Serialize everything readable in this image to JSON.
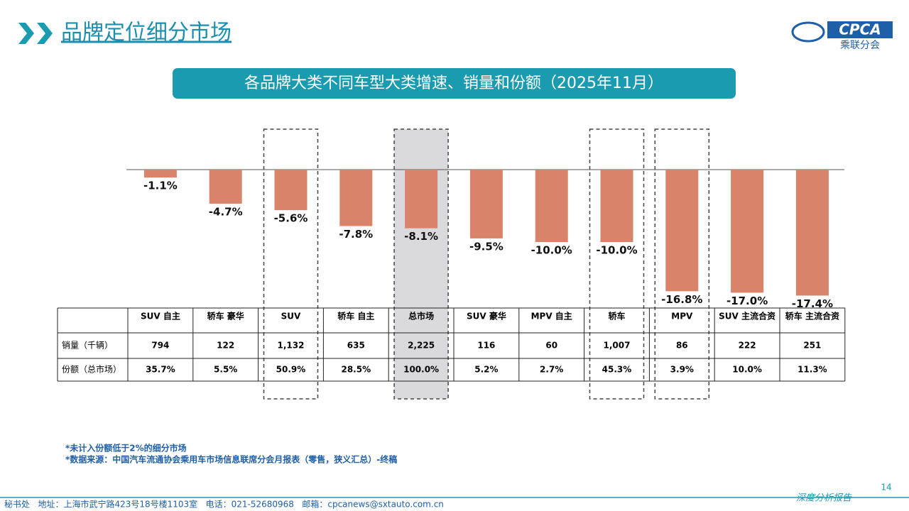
{
  "header": {
    "title": "品牌定位细分市场",
    "logo": "CPCA",
    "logo_sub": "乘联分会"
  },
  "chart_data": {
    "type": "bar",
    "title": "各品牌大类不同车型大类增速、销量和份额（2025年11月）",
    "categories": [
      "SUV 自主",
      "轿车 豪华",
      "SUV",
      "轿车 自主",
      "总市场",
      "SUV 豪华",
      "MPV 自主",
      "轿车",
      "MPV",
      "SUV 主流合资",
      "轿车 主流合资"
    ],
    "values": [
      -1.1,
      -4.7,
      -5.6,
      -7.8,
      -8.1,
      -9.5,
      -10.0,
      -10.0,
      -16.8,
      -17.0,
      -17.4
    ],
    "value_labels": [
      "-1.1%",
      "-4.7%",
      "-5.6%",
      "-7.8%",
      "-8.1%",
      "-9.5%",
      "-10.0%",
      "-10.0%",
      "-16.8%",
      "-17.0%",
      "-17.4%"
    ],
    "color": "#d9846a"
  },
  "table": {
    "row_labels": [
      "销量（千辆）",
      "份额（总市场）"
    ],
    "rows": [
      [
        "794",
        "122",
        "1,132",
        "635",
        "2,225",
        "116",
        "60",
        "1,007",
        "86",
        "222",
        "251"
      ],
      [
        "35.7%",
        "5.5%",
        "50.9%",
        "28.5%",
        "100.0%",
        "5.2%",
        "2.7%",
        "45.3%",
        "3.9%",
        "10.0%",
        "11.3%"
      ]
    ]
  },
  "notes": [
    "*未计入份额低于2%的细分市场",
    "*数据来源：中国汽车流通协会乘用车市场信息联席分会月报表（零售，狭义汇总）-终稿"
  ],
  "footer": {
    "contact": "秘书处   地址：上海市武宁路423号18号楼1103室   电话：021-52680968   邮箱：cpcanews@sxtauto.com.cn",
    "tagline": "深度分析报告",
    "page": "14"
  }
}
